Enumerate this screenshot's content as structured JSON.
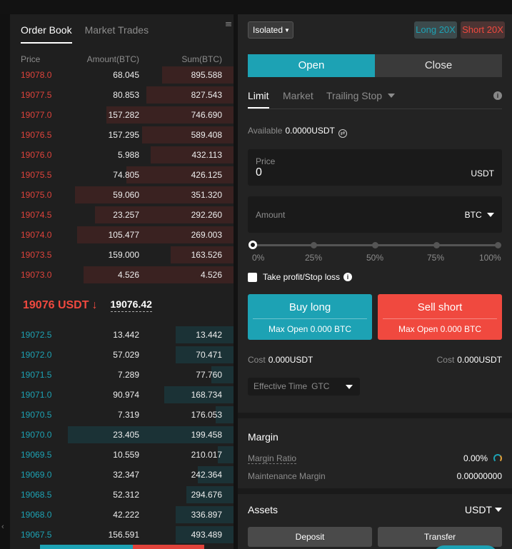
{
  "orderbook": {
    "tabs": [
      "Order Book",
      "Market Trades"
    ],
    "menu_icon": "list-icon",
    "headers": {
      "price": "Price",
      "amount": "Amount(BTC)",
      "sum": "Sum(BTC)"
    },
    "asks": [
      {
        "price": "19078.0",
        "amount": "68.045",
        "sum": "895.588",
        "depth": 0.32
      },
      {
        "price": "19077.5",
        "amount": "80.853",
        "sum": "827.543",
        "depth": 0.39
      },
      {
        "price": "19077.0",
        "amount": "157.282",
        "sum": "746.690",
        "depth": 0.57
      },
      {
        "price": "19076.5",
        "amount": "157.295",
        "sum": "589.408",
        "depth": 0.41
      },
      {
        "price": "19076.0",
        "amount": "5.988",
        "sum": "432.113",
        "depth": 0.37
      },
      {
        "price": "19075.5",
        "amount": "74.805",
        "sum": "426.125",
        "depth": 0.48
      },
      {
        "price": "19075.0",
        "amount": "59.060",
        "sum": "351.320",
        "depth": 0.71
      },
      {
        "price": "19074.5",
        "amount": "23.257",
        "sum": "292.260",
        "depth": 0.62
      },
      {
        "price": "19074.0",
        "amount": "105.477",
        "sum": "269.003",
        "depth": 0.7
      },
      {
        "price": "19073.5",
        "amount": "159.000",
        "sum": "163.526",
        "depth": 0.28
      },
      {
        "price": "19073.0",
        "amount": "4.526",
        "sum": "4.526",
        "depth": 0.67
      }
    ],
    "last_price": "19076 USDT",
    "last_direction": "down",
    "mark_price": "19076.42",
    "bids": [
      {
        "price": "19072.5",
        "amount": "13.442",
        "sum": "13.442",
        "depth": 0.26
      },
      {
        "price": "19072.0",
        "amount": "57.029",
        "sum": "70.471",
        "depth": 0.26
      },
      {
        "price": "19071.5",
        "amount": "7.289",
        "sum": "77.760",
        "depth": 0.1
      },
      {
        "price": "19071.0",
        "amount": "90.974",
        "sum": "168.734",
        "depth": 0.31
      },
      {
        "price": "19070.5",
        "amount": "7.319",
        "sum": "176.053",
        "depth": 0.08
      },
      {
        "price": "19070.0",
        "amount": "23.405",
        "sum": "199.458",
        "depth": 0.74
      },
      {
        "price": "19069.5",
        "amount": "10.559",
        "sum": "210.017",
        "depth": 0.07
      },
      {
        "price": "19069.0",
        "amount": "32.347",
        "sum": "242.364",
        "depth": 0.16
      },
      {
        "price": "19068.5",
        "amount": "52.312",
        "sum": "294.676",
        "depth": 0.21
      },
      {
        "price": "19068.0",
        "amount": "42.222",
        "sum": "336.897",
        "depth": 0.26
      },
      {
        "price": "19067.5",
        "amount": "156.591",
        "sum": "493.489",
        "depth": 0.26
      }
    ]
  },
  "trade": {
    "margin_mode": "Isolated",
    "long_leverage": "Long 20X",
    "short_leverage": "Short 20X",
    "open_label": "Open",
    "close_label": "Close",
    "order_tabs": [
      "Limit",
      "Market",
      "Trailing Stop"
    ],
    "available_label": "Available",
    "available_value": "0.0000USDT",
    "price_label": "Price",
    "price_value": "0",
    "price_unit": "USDT",
    "amount_placeholder": "Amount",
    "amount_unit": "BTC",
    "slider_level": 0,
    "slider_ticks": [
      "0%",
      "25%",
      "50%",
      "75%",
      "100%"
    ],
    "tpsl_label": "Take profit/Stop loss",
    "buy_label": "Buy long",
    "buy_max": "Max Open 0.000 BTC",
    "sell_label": "Sell short",
    "sell_max": "Max Open 0.000 BTC",
    "cost_label": "Cost",
    "cost_long": "0.000USDT",
    "cost_short": "0.000USDT",
    "effective_label": "Effective Time",
    "effective_value": "GTC"
  },
  "margin": {
    "title": "Margin",
    "ratio_label": "Margin Ratio",
    "ratio_value": "0.00%",
    "maintenance_label": "Maintenance Margin",
    "maintenance_value": "0.00000000"
  },
  "assets": {
    "title": "Assets",
    "currency": "USDT",
    "deposit_label": "Deposit",
    "transfer_label": "Transfer"
  },
  "colors": {
    "accent": "#1da2b4",
    "ask": "#e0433b",
    "bid": "#1da2b4",
    "sell": "#f0493f"
  }
}
